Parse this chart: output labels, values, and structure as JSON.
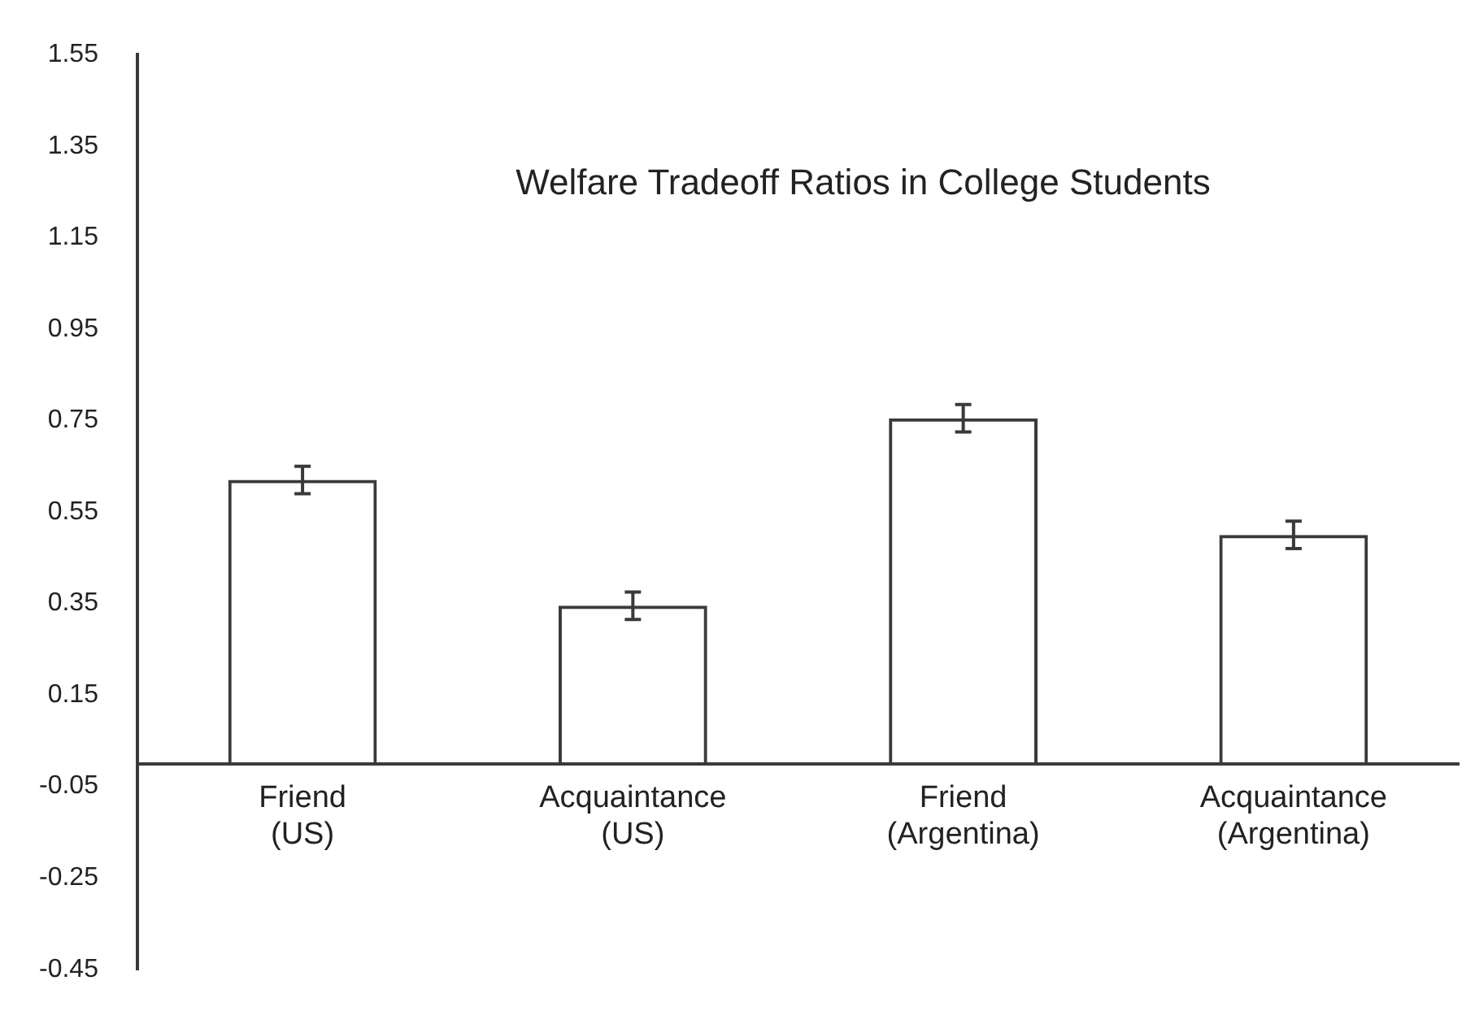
{
  "chart_data": {
    "type": "bar",
    "title": "Welfare Tradeoff Ratios in College Students",
    "categories": [
      "Friend (US)",
      "Acquaintance (US)",
      "Friend (Argentina)",
      "Acquaintance (Argentina)"
    ],
    "values": [
      0.62,
      0.345,
      0.755,
      0.5
    ],
    "errors": [
      0.03,
      0.03,
      0.03,
      0.03
    ],
    "color": "#3a3a3a",
    "ylim": [
      -0.45,
      1.55
    ],
    "yticks": [
      1.55,
      1.35,
      1.15,
      0.95,
      0.75,
      0.55,
      0.35,
      0.15,
      -0.05,
      -0.25,
      -0.45
    ],
    "grid": false,
    "legend": false
  }
}
